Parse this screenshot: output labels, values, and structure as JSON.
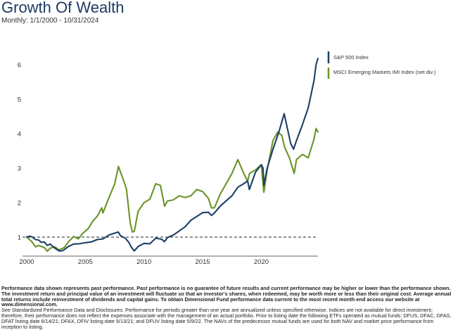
{
  "header": {
    "title": "Growth Of Wealth",
    "subtitle": "Monthly: 1/1/2000 - 10/31/2024"
  },
  "colors": {
    "sp500": "#1c3f66",
    "msci_em": "#6b9428",
    "title": "#1c3b63",
    "baseline": "#222222"
  },
  "chart_data": {
    "type": "line",
    "title": "Growth Of Wealth",
    "subtitle": "Monthly: 1/1/2000 - 10/31/2024",
    "xlabel": "",
    "ylabel": "",
    "xlim": [
      2000,
      2024.83
    ],
    "ylim": [
      0.45,
      6.55
    ],
    "x_ticks": [
      "2000",
      "2005",
      "2010",
      "2015",
      "2020"
    ],
    "y_ticks": [
      "1",
      "2",
      "3",
      "4",
      "5",
      "6"
    ],
    "grid": false,
    "reference_line": 1,
    "legend_position": "top-right",
    "series": [
      {
        "name": "S&P 500 Index",
        "color": "#1c3f66",
        "x": [
          2000.0,
          2000.25,
          2000.5,
          2000.75,
          2001.0,
          2001.25,
          2001.5,
          2001.75,
          2002.0,
          2002.25,
          2002.5,
          2002.75,
          2003.0,
          2003.25,
          2003.5,
          2004.0,
          2004.5,
          2005.0,
          2005.5,
          2006.0,
          2006.5,
          2007.0,
          2007.5,
          2007.8,
          2008.0,
          2008.4,
          2008.7,
          2008.9,
          2009.17,
          2009.5,
          2010.0,
          2010.5,
          2011.0,
          2011.5,
          2011.75,
          2012.0,
          2012.5,
          2013.0,
          2013.5,
          2014.0,
          2014.5,
          2015.0,
          2015.5,
          2015.75,
          2016.0,
          2016.5,
          2017.0,
          2017.5,
          2018.0,
          2018.5,
          2018.83,
          2018.98,
          2019.5,
          2020.0,
          2020.15,
          2020.22,
          2020.5,
          2021.0,
          2021.5,
          2021.95,
          2022.5,
          2022.75,
          2023.0,
          2023.5,
          2024.0,
          2024.5,
          2024.67,
          2024.83
        ],
        "values": [
          1.0,
          1.03,
          1.0,
          0.93,
          0.92,
          0.85,
          0.86,
          0.76,
          0.8,
          0.72,
          0.66,
          0.6,
          0.6,
          0.65,
          0.72,
          0.8,
          0.81,
          0.84,
          0.86,
          0.93,
          0.95,
          1.06,
          1.12,
          1.15,
          1.04,
          0.97,
          0.85,
          0.72,
          0.6,
          0.73,
          0.82,
          0.81,
          0.97,
          0.94,
          0.87,
          0.99,
          1.06,
          1.18,
          1.3,
          1.49,
          1.6,
          1.71,
          1.72,
          1.63,
          1.7,
          1.9,
          2.05,
          2.2,
          2.45,
          2.55,
          2.63,
          2.38,
          2.88,
          3.1,
          3.0,
          2.5,
          3.0,
          3.55,
          4.05,
          4.58,
          3.72,
          3.55,
          3.8,
          4.25,
          4.75,
          5.55,
          6.0,
          6.18
        ]
      },
      {
        "name": "MSCI Emerging Markets IMI Index (net div.)",
        "color": "#6b9428",
        "x": [
          2000.0,
          2000.4,
          2000.75,
          2001.0,
          2001.5,
          2001.75,
          2002.0,
          2002.4,
          2002.75,
          2003.2,
          2003.6,
          2004.0,
          2004.4,
          2004.75,
          2005.25,
          2005.6,
          2006.0,
          2006.4,
          2006.5,
          2006.9,
          2007.5,
          2007.82,
          2008.2,
          2008.5,
          2008.83,
          2009.0,
          2009.17,
          2009.5,
          2010.0,
          2010.5,
          2011.0,
          2011.4,
          2011.75,
          2012.0,
          2012.5,
          2013.0,
          2013.5,
          2014.0,
          2014.5,
          2015.0,
          2015.5,
          2015.75,
          2016.0,
          2016.5,
          2017.0,
          2017.5,
          2018.0,
          2018.5,
          2018.83,
          2019.0,
          2019.5,
          2020.0,
          2020.22,
          2020.5,
          2021.0,
          2021.4,
          2021.75,
          2022.0,
          2022.4,
          2022.8,
          2023.0,
          2023.5,
          2024.0,
          2024.5,
          2024.67,
          2024.83
        ],
        "values": [
          1.0,
          0.88,
          0.72,
          0.76,
          0.7,
          0.59,
          0.68,
          0.72,
          0.63,
          0.7,
          0.88,
          1.02,
          0.95,
          1.1,
          1.25,
          1.45,
          1.6,
          1.85,
          1.7,
          2.05,
          2.55,
          3.05,
          2.7,
          2.4,
          1.4,
          1.15,
          1.17,
          1.75,
          2.0,
          2.1,
          2.55,
          2.5,
          1.9,
          2.05,
          2.08,
          2.2,
          2.15,
          2.2,
          2.38,
          2.32,
          2.12,
          1.85,
          1.85,
          2.25,
          2.55,
          2.85,
          3.25,
          2.85,
          2.62,
          2.85,
          2.95,
          3.1,
          2.3,
          2.95,
          3.8,
          4.05,
          3.95,
          3.6,
          3.3,
          2.85,
          3.25,
          3.4,
          3.3,
          3.85,
          4.15,
          4.05
        ]
      }
    ]
  },
  "footer": {
    "bold_text": "Performance data shown represents past performance. Past performance is no guarantee of future results and current performance may be higher or lower than the performance shown. The investment return and principal value of an investment will fluctuate so that an investor's shares, when redeemed, may be worth more or less than their original cost. Average annual total returns include reinvestment of dividends and capital gains. To obtain Dimensional Fund performance data current to the most recent month-end access our website at www.dimensional.com.",
    "normal_text": "See Standardized Performance Data and Disclosures. Performance for periods greater than one year are annualized unless specified otherwise. Indices are not available for direct investment; therefore, their performance does not reflect the expenses associate with the management of an actual portfolio. Prior to listing date the following ETFs operated as mutual funds: DFUS, DFAC, DFAS, DFAT listing date 6/14/21; DFAX, DFIV listing date 9/13/21; and DFUV listing date 5/9/22. The NAVs of the predecessor mutual funds are used for both NAV and market price performance from inception to listing."
  }
}
